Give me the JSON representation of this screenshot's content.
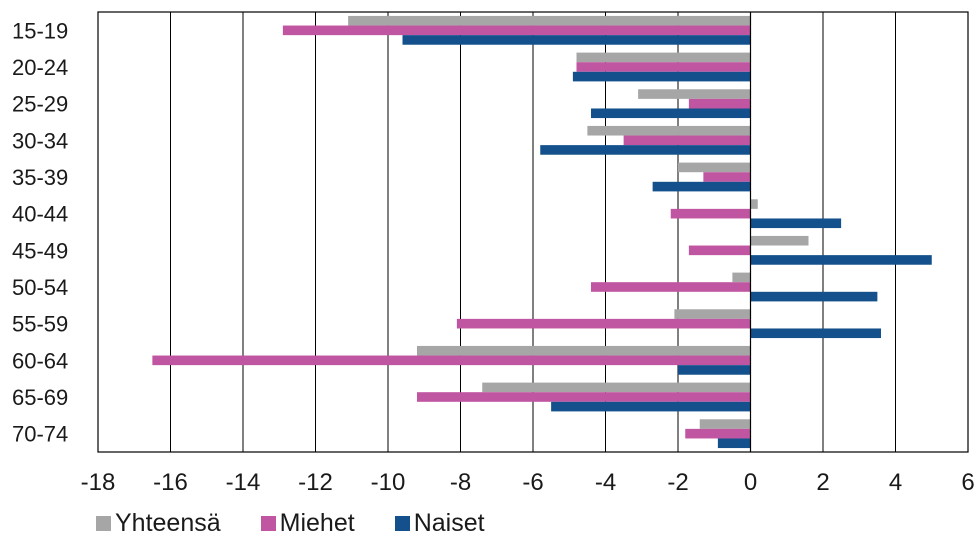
{
  "chart_data": {
    "type": "bar",
    "orientation": "horizontal",
    "categories": [
      "15-19",
      "20-24",
      "25-29",
      "30-34",
      "35-39",
      "40-44",
      "45-49",
      "50-54",
      "55-59",
      "60-64",
      "65-69",
      "70-74"
    ],
    "series": [
      {
        "name": "Yhteensä",
        "color": "#a6a6a6",
        "values": [
          -11.1,
          -4.8,
          -3.1,
          -4.5,
          -2.0,
          0.2,
          1.6,
          -0.5,
          -2.1,
          -9.2,
          -7.4,
          -1.4
        ]
      },
      {
        "name": "Miehet",
        "color": "#c055a1",
        "values": [
          -12.9,
          -4.8,
          -1.7,
          -3.5,
          -1.3,
          -2.2,
          -1.7,
          -4.4,
          -8.1,
          -16.5,
          -9.2,
          -1.8
        ]
      },
      {
        "name": "Naiset",
        "color": "#14508c",
        "values": [
          -9.6,
          -4.9,
          -4.4,
          -5.8,
          -2.7,
          2.5,
          5.0,
          3.5,
          3.6,
          -2.0,
          -5.5,
          -0.9
        ]
      }
    ],
    "xlim": [
      -18,
      6
    ],
    "xticks": [
      "-18",
      "-16",
      "-14",
      "-12",
      "-10",
      "-8",
      "-6",
      "-4",
      "-2",
      "0",
      "2",
      "4",
      "6"
    ],
    "title": "",
    "xlabel": "",
    "ylabel": "",
    "grid": "vertical",
    "legend": "bottom-left"
  }
}
